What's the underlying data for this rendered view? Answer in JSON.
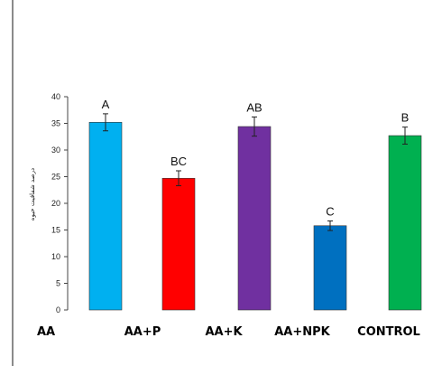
{
  "chart_data": {
    "type": "bar",
    "categories": [
      "AA",
      "AA+P",
      "AA+K",
      "AA+NPK",
      "CONTROL"
    ],
    "values": [
      35.2,
      24.7,
      34.4,
      15.8,
      32.7
    ],
    "errors": [
      1.6,
      1.4,
      1.8,
      0.9,
      1.6
    ],
    "bar_labels": [
      "A",
      "BC",
      "AB",
      "C",
      "B"
    ],
    "colors": [
      "#00b0f0",
      "#ff0000",
      "#7030a0",
      "#0070c0",
      "#00b050"
    ],
    "ylim": [
      0,
      40
    ],
    "yticks": [
      0,
      5,
      10,
      15,
      20,
      25,
      30,
      35,
      40
    ],
    "ylabel": "درصد شفافیت حیوه",
    "xlabel": "",
    "title": "",
    "grid": false,
    "legend": "none"
  }
}
